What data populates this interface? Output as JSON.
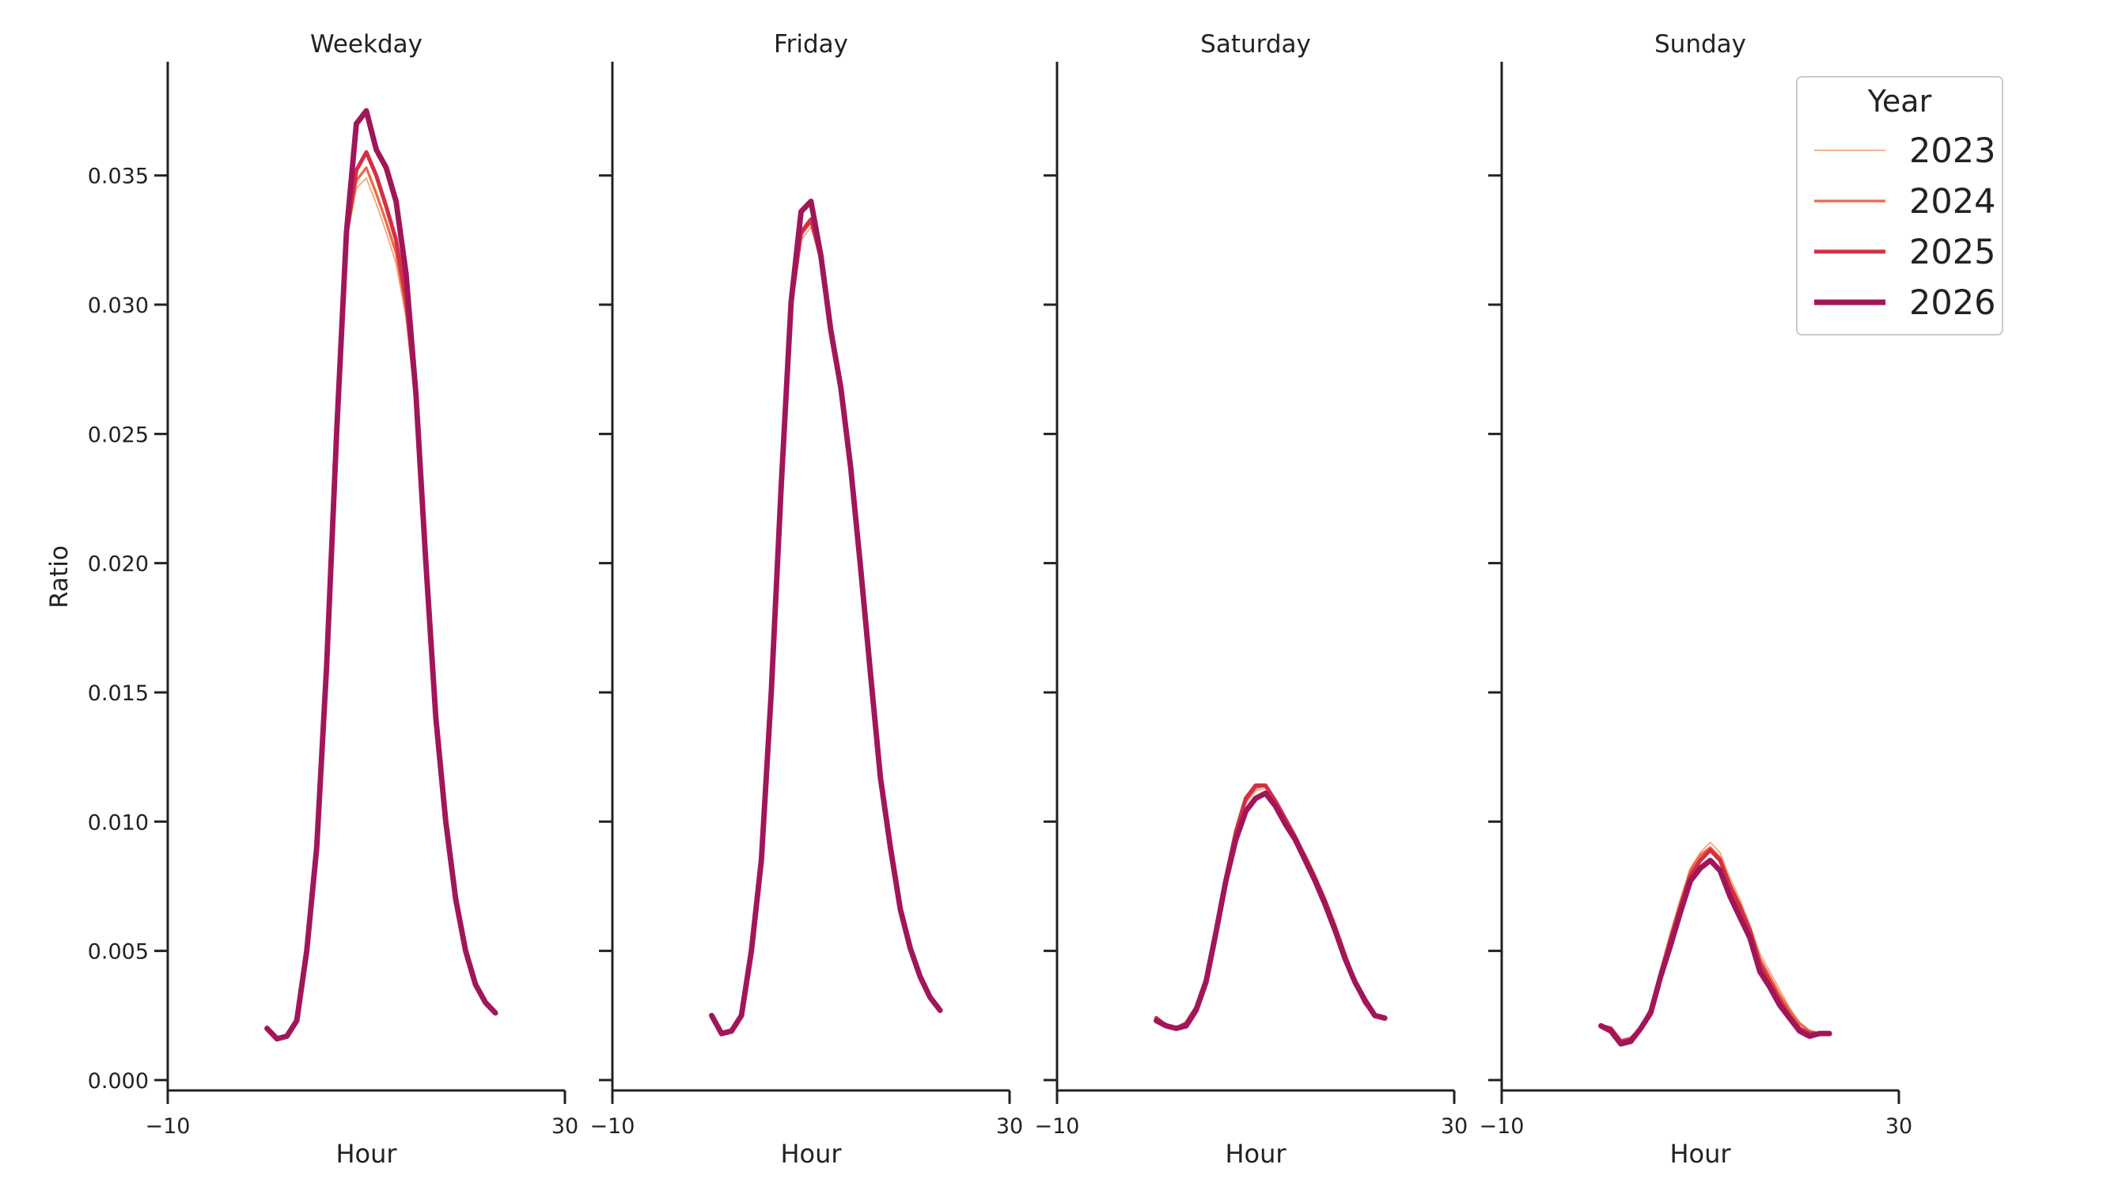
{
  "chart_data": {
    "type": "line",
    "ylabel": "Ratio",
    "xlabel": "Hour",
    "xlim": [
      -10,
      30
    ],
    "ylim": [
      -0.0004,
      0.0394
    ],
    "x_ticks": [
      -10,
      30
    ],
    "x_tick_labels": [
      "−10",
      "30"
    ],
    "y_ticks": [
      0.0,
      0.005,
      0.01,
      0.015,
      0.02,
      0.025,
      0.03,
      0.035
    ],
    "y_tick_labels": [
      "0.000",
      "0.005",
      "0.010",
      "0.015",
      "0.020",
      "0.025",
      "0.030",
      "0.035"
    ],
    "grid": false,
    "legend": {
      "title": "Year",
      "position": "top-right",
      "entries": [
        "2023",
        "2024",
        "2025",
        "2026"
      ]
    },
    "series_colors": {
      "2023": "#f4a77f",
      "2024": "#ec6b48",
      "2025": "#d42f44",
      "2026": "#a11659"
    },
    "series_widths": {
      "2023": 1.2,
      "2024": 2.2,
      "2025": 3.4,
      "2026": 4.6
    },
    "panels": [
      {
        "title": "Weekday",
        "x": [
          0,
          1,
          2,
          3,
          4,
          5,
          6,
          7,
          8,
          9,
          10,
          11,
          12,
          13,
          14,
          15,
          16,
          17,
          18,
          19,
          20,
          21,
          22,
          23
        ],
        "series": [
          {
            "name": "2023",
            "values": [
              0.002,
              0.0016,
              0.0017,
              0.0023,
              0.005,
              0.009,
              0.016,
              0.025,
              0.0325,
              0.0345,
              0.0349,
              0.0339,
              0.0328,
              0.0316,
              0.0295,
              0.026,
              0.02,
              0.014,
              0.01,
              0.007,
              0.005,
              0.0037,
              0.003,
              0.0026
            ]
          },
          {
            "name": "2024",
            "values": [
              0.002,
              0.0016,
              0.0017,
              0.0023,
              0.005,
              0.009,
              0.016,
              0.025,
              0.0326,
              0.0348,
              0.0353,
              0.0343,
              0.0332,
              0.032,
              0.0298,
              0.0262,
              0.02,
              0.014,
              0.01,
              0.007,
              0.005,
              0.0037,
              0.003,
              0.0026
            ]
          },
          {
            "name": "2025",
            "values": [
              0.002,
              0.0016,
              0.0017,
              0.0023,
              0.005,
              0.009,
              0.016,
              0.025,
              0.0327,
              0.0352,
              0.0359,
              0.035,
              0.0338,
              0.0325,
              0.0302,
              0.0264,
              0.02,
              0.014,
              0.01,
              0.007,
              0.005,
              0.0037,
              0.003,
              0.0026
            ]
          },
          {
            "name": "2026",
            "values": [
              0.002,
              0.0016,
              0.0017,
              0.0023,
              0.005,
              0.009,
              0.016,
              0.025,
              0.0328,
              0.037,
              0.0375,
              0.036,
              0.0353,
              0.034,
              0.0312,
              0.0265,
              0.02,
              0.014,
              0.01,
              0.007,
              0.005,
              0.0037,
              0.003,
              0.0026
            ]
          }
        ]
      },
      {
        "title": "Friday",
        "x": [
          0,
          1,
          2,
          3,
          4,
          5,
          6,
          7,
          8,
          9,
          10,
          11,
          12,
          13,
          14,
          15,
          16,
          17,
          18,
          19,
          20,
          21,
          22,
          23
        ],
        "series": [
          {
            "name": "2023",
            "values": [
              0.0025,
              0.0018,
              0.0019,
              0.0025,
              0.005,
              0.0085,
              0.015,
              0.023,
              0.0298,
              0.0325,
              0.033,
              0.0318,
              0.029,
              0.0268,
              0.0237,
              0.0198,
              0.0157,
              0.0117,
              0.009,
              0.0066,
              0.0051,
              0.004,
              0.0032,
              0.0027
            ]
          },
          {
            "name": "2024",
            "values": [
              0.0025,
              0.0018,
              0.0019,
              0.0025,
              0.005,
              0.0085,
              0.015,
              0.023,
              0.0299,
              0.0327,
              0.0332,
              0.0318,
              0.029,
              0.0268,
              0.0237,
              0.0198,
              0.0157,
              0.0117,
              0.009,
              0.0066,
              0.0051,
              0.004,
              0.0032,
              0.0027
            ]
          },
          {
            "name": "2025",
            "values": [
              0.0025,
              0.0018,
              0.0019,
              0.0025,
              0.005,
              0.0085,
              0.015,
              0.023,
              0.03,
              0.0328,
              0.0333,
              0.0318,
              0.029,
              0.0268,
              0.0237,
              0.0198,
              0.0157,
              0.0117,
              0.009,
              0.0066,
              0.0051,
              0.004,
              0.0032,
              0.0027
            ]
          },
          {
            "name": "2026",
            "values": [
              0.0025,
              0.0018,
              0.0019,
              0.0025,
              0.005,
              0.0085,
              0.015,
              0.023,
              0.0301,
              0.0336,
              0.034,
              0.0319,
              0.029,
              0.0268,
              0.0237,
              0.0198,
              0.0157,
              0.0117,
              0.009,
              0.0066,
              0.0051,
              0.004,
              0.0032,
              0.0027
            ]
          }
        ]
      },
      {
        "title": "Saturday",
        "x": [
          0,
          1,
          2,
          3,
          4,
          5,
          6,
          7,
          8,
          9,
          10,
          11,
          12,
          13,
          14,
          15,
          16,
          17,
          18,
          19,
          20,
          21,
          22,
          23
        ],
        "series": [
          {
            "name": "2023",
            "values": [
              0.0024,
              0.0021,
              0.002,
              0.0022,
              0.0028,
              0.0039,
              0.0058,
              0.0078,
              0.0095,
              0.0107,
              0.0112,
              0.0113,
              0.0108,
              0.01,
              0.0094,
              0.0087,
              0.0079,
              0.0071,
              0.0061,
              0.005,
              0.0039,
              0.003,
              0.0025,
              0.0024
            ]
          },
          {
            "name": "2024",
            "values": [
              0.0024,
              0.0021,
              0.002,
              0.0022,
              0.0028,
              0.0039,
              0.0058,
              0.0078,
              0.0095,
              0.0108,
              0.0113,
              0.0114,
              0.0108,
              0.0101,
              0.0094,
              0.0087,
              0.0079,
              0.007,
              0.006,
              0.0049,
              0.0038,
              0.003,
              0.0025,
              0.0024
            ]
          },
          {
            "name": "2025",
            "values": [
              0.0024,
              0.0021,
              0.002,
              0.0022,
              0.0028,
              0.0039,
              0.0058,
              0.0078,
              0.0096,
              0.0109,
              0.0114,
              0.0114,
              0.0108,
              0.0101,
              0.0094,
              0.0086,
              0.0078,
              0.0069,
              0.0059,
              0.0048,
              0.0038,
              0.003,
              0.0025,
              0.0024
            ]
          },
          {
            "name": "2026",
            "values": [
              0.0023,
              0.0021,
              0.002,
              0.0021,
              0.0027,
              0.0038,
              0.0057,
              0.0077,
              0.0093,
              0.0104,
              0.0109,
              0.0111,
              0.0106,
              0.0099,
              0.0093,
              0.0085,
              0.0077,
              0.0068,
              0.0058,
              0.0047,
              0.0038,
              0.0031,
              0.0025,
              0.0024
            ]
          }
        ]
      },
      {
        "title": "Sunday",
        "x": [
          0,
          1,
          2,
          3,
          4,
          5,
          6,
          7,
          8,
          9,
          10,
          11,
          12,
          13,
          14,
          15,
          16,
          17,
          18,
          19,
          20,
          21,
          22,
          23
        ],
        "series": [
          {
            "name": "2023",
            "values": [
              0.002,
              0.0019,
              0.0015,
              0.0016,
              0.002,
              0.0028,
              0.0043,
              0.0057,
              0.007,
              0.0082,
              0.0088,
              0.0092,
              0.0088,
              0.0078,
              0.007,
              0.006,
              0.0049,
              0.0042,
              0.0035,
              0.0028,
              0.0022,
              0.0019,
              0.0018,
              0.0018
            ]
          },
          {
            "name": "2024",
            "values": [
              0.0021,
              0.0019,
              0.0015,
              0.0016,
              0.002,
              0.0027,
              0.0042,
              0.0056,
              0.0069,
              0.0081,
              0.0087,
              0.009,
              0.0086,
              0.0076,
              0.0068,
              0.0058,
              0.0047,
              0.004,
              0.0033,
              0.0027,
              0.0022,
              0.0019,
              0.0018,
              0.0018
            ]
          },
          {
            "name": "2025",
            "values": [
              0.0021,
              0.002,
              0.0015,
              0.0016,
              0.002,
              0.0027,
              0.0041,
              0.0054,
              0.0067,
              0.0079,
              0.0085,
              0.0089,
              0.0085,
              0.0075,
              0.0067,
              0.0058,
              0.0045,
              0.0038,
              0.0031,
              0.0025,
              0.002,
              0.0018,
              0.0018,
              0.0018
            ]
          },
          {
            "name": "2026",
            "values": [
              0.0021,
              0.0019,
              0.0014,
              0.0015,
              0.002,
              0.0026,
              0.004,
              0.0052,
              0.0065,
              0.0077,
              0.0082,
              0.0085,
              0.0081,
              0.0071,
              0.0063,
              0.0055,
              0.0042,
              0.0036,
              0.0029,
              0.0024,
              0.0019,
              0.0017,
              0.0018,
              0.0018
            ]
          }
        ]
      }
    ]
  }
}
